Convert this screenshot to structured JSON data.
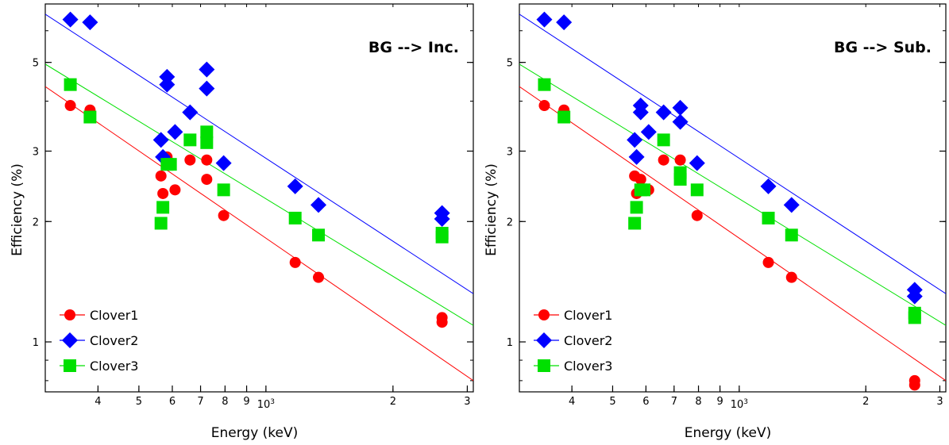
{
  "chart_data": [
    {
      "type": "scatter",
      "panel": "left",
      "annotation": "BG --> Inc.",
      "xlabel": "Energy (keV)",
      "ylabel": "Efficiency (%)",
      "xscale": "log",
      "yscale": "log",
      "xlim": [
        300,
        3100
      ],
      "ylim": [
        0.75,
        7.0
      ],
      "xticks": [
        {
          "v": 400,
          "label": "4"
        },
        {
          "v": 500,
          "label": "5"
        },
        {
          "v": 600,
          "label": "6"
        },
        {
          "v": 700,
          "label": "7"
        },
        {
          "v": 800,
          "label": "8"
        },
        {
          "v": 900,
          "label": "9"
        },
        {
          "v": 1000,
          "label": "10",
          "sup": "3"
        },
        {
          "v": 2000,
          "label": "2"
        },
        {
          "v": 3000,
          "label": "3"
        }
      ],
      "yticks": [
        {
          "v": 1,
          "label": "1"
        },
        {
          "v": 2,
          "label": "2"
        },
        {
          "v": 3,
          "label": "3"
        },
        {
          "v": 5,
          "label": "5"
        }
      ],
      "legend": {
        "position": "bottom-left",
        "entries": [
          "Clover1",
          "Clover2",
          "Clover3"
        ]
      },
      "series": [
        {
          "name": "Clover1",
          "color": "#ff0000",
          "marker": "circle",
          "fit": [
            [
              300,
              4.35
            ],
            [
              3100,
              0.8
            ]
          ],
          "points": [
            [
              344,
              3.9
            ],
            [
              383,
              3.8
            ],
            [
              564,
              2.6
            ],
            [
              570,
              2.35
            ],
            [
              583,
              2.9
            ],
            [
              609,
              2.4
            ],
            [
              661,
              2.85
            ],
            [
              724,
              2.85
            ],
            [
              724,
              2.55
            ],
            [
              794,
              2.07
            ],
            [
              1173,
              1.58
            ],
            [
              1332,
              1.45
            ],
            [
              2614,
              1.15
            ],
            [
              2614,
              1.12
            ]
          ]
        },
        {
          "name": "Clover2",
          "color": "#0000ff",
          "marker": "diamond",
          "fit": [
            [
              300,
              6.6
            ],
            [
              3100,
              1.32
            ]
          ],
          "points": [
            [
              344,
              6.4
            ],
            [
              383,
              6.3
            ],
            [
              564,
              3.2
            ],
            [
              570,
              2.9
            ],
            [
              583,
              4.6
            ],
            [
              583,
              4.4
            ],
            [
              609,
              3.35
            ],
            [
              661,
              3.75
            ],
            [
              724,
              4.8
            ],
            [
              724,
              4.3
            ],
            [
              794,
              2.8
            ],
            [
              1173,
              2.45
            ],
            [
              1332,
              2.2
            ],
            [
              2614,
              2.1
            ],
            [
              2614,
              2.03
            ]
          ]
        },
        {
          "name": "Clover3",
          "color": "#00e000",
          "marker": "square",
          "fit": [
            [
              300,
              4.95
            ],
            [
              3100,
              1.1
            ]
          ],
          "points": [
            [
              344,
              4.4
            ],
            [
              383,
              3.65
            ],
            [
              564,
              1.98
            ],
            [
              570,
              2.17
            ],
            [
              583,
              2.78
            ],
            [
              594,
              2.78
            ],
            [
              661,
              3.2
            ],
            [
              724,
              3.35
            ],
            [
              724,
              3.15
            ],
            [
              794,
              2.4
            ],
            [
              1173,
              2.04
            ],
            [
              1332,
              1.85
            ],
            [
              2614,
              1.87
            ],
            [
              2614,
              1.83
            ]
          ]
        }
      ]
    },
    {
      "type": "scatter",
      "panel": "right",
      "annotation": "BG --> Sub.",
      "xlabel": "Energy (keV)",
      "ylabel": "Efficiency (%)",
      "xscale": "log",
      "yscale": "log",
      "xlim": [
        300,
        3100
      ],
      "ylim": [
        0.75,
        7.0
      ],
      "xticks": [
        {
          "v": 400,
          "label": "4"
        },
        {
          "v": 500,
          "label": "5"
        },
        {
          "v": 600,
          "label": "6"
        },
        {
          "v": 700,
          "label": "7"
        },
        {
          "v": 800,
          "label": "8"
        },
        {
          "v": 900,
          "label": "9"
        },
        {
          "v": 1000,
          "label": "10",
          "sup": "3"
        },
        {
          "v": 2000,
          "label": "2"
        },
        {
          "v": 3000,
          "label": "3"
        }
      ],
      "yticks": [
        {
          "v": 1,
          "label": "1"
        },
        {
          "v": 2,
          "label": "2"
        },
        {
          "v": 3,
          "label": "3"
        },
        {
          "v": 5,
          "label": "5"
        }
      ],
      "legend": {
        "position": "bottom-left",
        "entries": [
          "Clover1",
          "Clover2",
          "Clover3"
        ]
      },
      "series": [
        {
          "name": "Clover1",
          "color": "#ff0000",
          "marker": "circle",
          "fit": [
            [
              300,
              4.35
            ],
            [
              3100,
              0.8
            ]
          ],
          "points": [
            [
              344,
              3.9
            ],
            [
              383,
              3.8
            ],
            [
              564,
              2.6
            ],
            [
              570,
              2.35
            ],
            [
              583,
              2.55
            ],
            [
              609,
              2.4
            ],
            [
              661,
              2.85
            ],
            [
              724,
              2.85
            ],
            [
              794,
              2.07
            ],
            [
              1173,
              1.58
            ],
            [
              1332,
              1.45
            ],
            [
              2614,
              0.8
            ],
            [
              2614,
              0.78
            ]
          ]
        },
        {
          "name": "Clover2",
          "color": "#0000ff",
          "marker": "diamond",
          "fit": [
            [
              300,
              6.6
            ],
            [
              3100,
              1.32
            ]
          ],
          "points": [
            [
              344,
              6.4
            ],
            [
              383,
              6.3
            ],
            [
              564,
              3.2
            ],
            [
              570,
              2.9
            ],
            [
              583,
              3.9
            ],
            [
              583,
              3.75
            ],
            [
              609,
              3.35
            ],
            [
              661,
              3.75
            ],
            [
              724,
              3.85
            ],
            [
              724,
              3.55
            ],
            [
              794,
              2.8
            ],
            [
              1173,
              2.45
            ],
            [
              1332,
              2.2
            ],
            [
              2614,
              1.35
            ],
            [
              2614,
              1.3
            ]
          ]
        },
        {
          "name": "Clover3",
          "color": "#00e000",
          "marker": "square",
          "fit": [
            [
              300,
              4.95
            ],
            [
              3100,
              1.1
            ]
          ],
          "points": [
            [
              344,
              4.4
            ],
            [
              383,
              3.65
            ],
            [
              564,
              1.98
            ],
            [
              570,
              2.17
            ],
            [
              583,
              2.4
            ],
            [
              594,
              2.4
            ],
            [
              661,
              3.2
            ],
            [
              724,
              2.65
            ],
            [
              724,
              2.55
            ],
            [
              794,
              2.4
            ],
            [
              1173,
              2.04
            ],
            [
              1332,
              1.85
            ],
            [
              2614,
              1.18
            ],
            [
              2614,
              1.15
            ]
          ]
        }
      ]
    }
  ]
}
